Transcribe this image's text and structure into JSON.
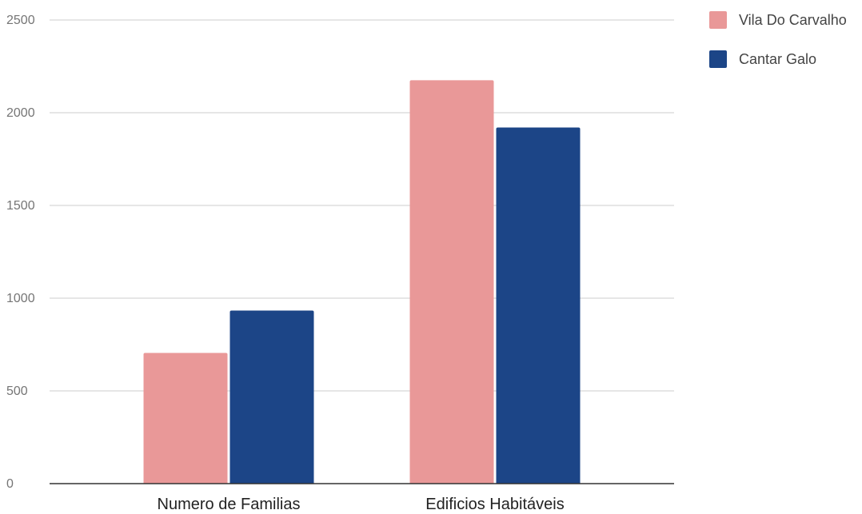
{
  "chart_data": {
    "type": "bar",
    "title": "",
    "xlabel": "",
    "ylabel": "",
    "categories": [
      "Numero de Familias",
      "Edificios Habitáveis"
    ],
    "series": [
      {
        "name": "Vila Do Carvalho",
        "color": "#e99898",
        "values": [
          705,
          2175
        ]
      },
      {
        "name": "Cantar Galo",
        "color": "#1c4587",
        "values": [
          933,
          1920
        ]
      }
    ],
    "ylim": [
      0,
      2500
    ],
    "yticks": [
      "0",
      "500",
      "1000",
      "1500",
      "2000",
      "2500"
    ],
    "grid": true,
    "legend_position": "top-right"
  }
}
